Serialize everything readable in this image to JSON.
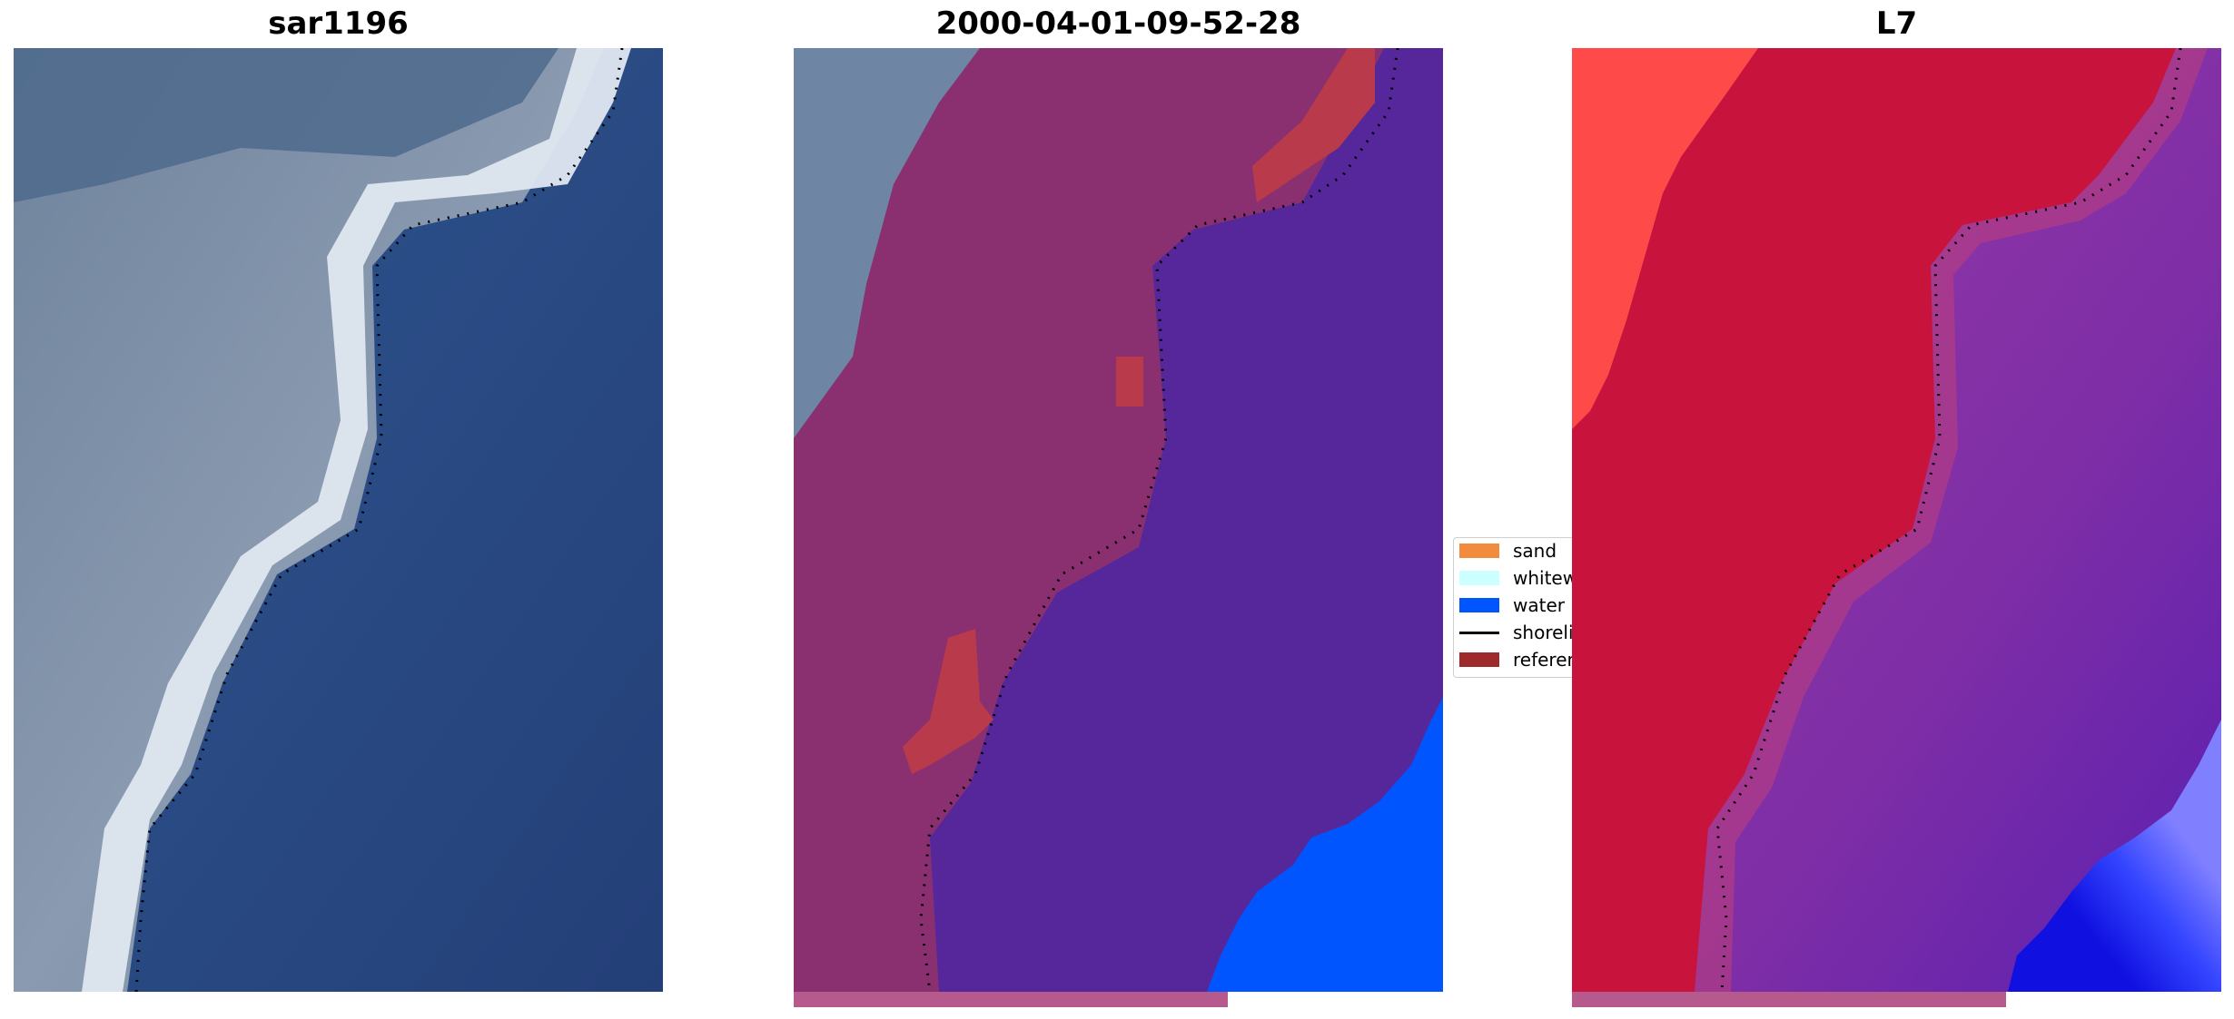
{
  "panels": [
    {
      "title": "sar1196"
    },
    {
      "title": "2000-04-01-09-52-28"
    },
    {
      "title": "L7"
    }
  ],
  "legend": {
    "items": [
      {
        "label": "sand",
        "color": "#f28c3c",
        "kind": "patch"
      },
      {
        "label": "whitewater",
        "color": "#ccffff",
        "kind": "patch"
      },
      {
        "label": "water",
        "color": "#0055ff",
        "kind": "patch"
      },
      {
        "label": "shoreline",
        "color": "#000000",
        "kind": "line"
      },
      {
        "label": "reference shoreline",
        "color": "#9e2a2b",
        "kind": "patch"
      }
    ]
  },
  "colors": {
    "water_class": "#0055ff",
    "sand_class_overlay": "#b54880",
    "whitewater_class": "#ccffff",
    "reference_shoreline_buffer": "#b93a4b",
    "sea_composite": "#2d4f86",
    "land_composite": "#7f8fa8",
    "surf_composite": "#dde6ee",
    "land_index": "#c8143c",
    "sea_index": "#8a2c9f",
    "deep_water_index": "#2233ff"
  }
}
